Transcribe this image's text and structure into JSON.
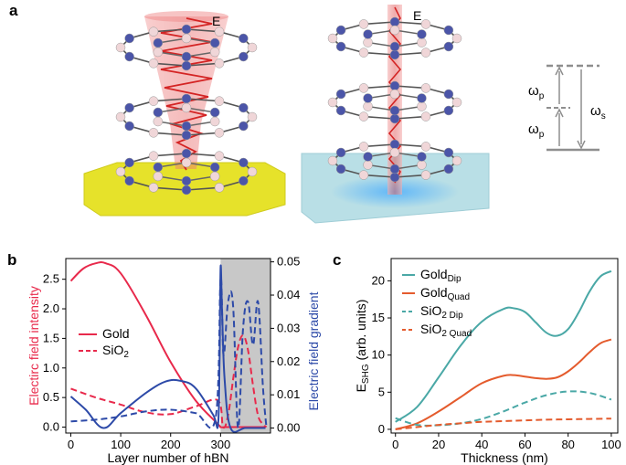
{
  "panels": {
    "a": {
      "label": "a",
      "field_left": "E",
      "field_right": "E",
      "energy": {
        "wp_upper": "ω",
        "wp_upper_sub": "p",
        "wp_lower": "ω",
        "wp_lower_sub": "p",
        "ws": "ω",
        "ws_sub": "s"
      }
    },
    "b": {
      "label": "b"
    },
    "c": {
      "label": "c"
    }
  },
  "colors": {
    "gold": "#e8294b",
    "sio2": "#2d4aa8",
    "gold_dip": "#4aa8a6",
    "gold_quad": "#e45b2d",
    "shade": "#c8c8c8"
  },
  "chart_data": [
    {
      "type": "line",
      "panel": "b",
      "xlabel": "Layer number of hBN",
      "ylabel_left": "Electirc field intensity",
      "ylabel_right": "Electric field gradient",
      "xlim": [
        -10,
        400
      ],
      "ylim_left": [
        -0.1,
        2.85
      ],
      "ylim_right": [
        -0.0015,
        0.051
      ],
      "x_ticks": [
        0,
        100,
        200,
        300
      ],
      "y_left_ticks": [
        "0.0",
        "0.5",
        "1.0",
        "1.5",
        "2.0",
        "2.5"
      ],
      "y_right_ticks": [
        "0.00",
        "0.01",
        "0.02",
        "0.03",
        "0.04",
        "0.05"
      ],
      "shaded_region": [
        300,
        400
      ],
      "legend": {
        "placement": "center-left",
        "entries": [
          {
            "label": "Gold",
            "style": "solid"
          },
          {
            "label": "SiO",
            "sub": "2",
            "style": "dashed"
          }
        ]
      },
      "series": [
        {
          "name": "Gold",
          "axis": "left",
          "style": "solid",
          "color": "#e8294b",
          "x": [
            0,
            25,
            50,
            70,
            100,
            150,
            200,
            250,
            295,
            300,
            310,
            320,
            330,
            340,
            350,
            360,
            370,
            380,
            390
          ],
          "y": [
            2.47,
            2.68,
            2.77,
            2.77,
            2.6,
            1.9,
            1.1,
            0.45,
            0.05,
            0.0,
            0.0,
            0.0,
            0.0,
            0.0,
            0.0,
            0.0,
            0.0,
            0.0,
            0.0
          ]
        },
        {
          "name": "SiO2",
          "axis": "left",
          "style": "dashed",
          "color": "#e8294b",
          "x": [
            0,
            50,
            100,
            150,
            200,
            250,
            295,
            305,
            315,
            325,
            335,
            345,
            355,
            365,
            375,
            385,
            392
          ],
          "y": [
            0.65,
            0.5,
            0.38,
            0.25,
            0.22,
            0.35,
            0.45,
            0.0,
            0.2,
            0.8,
            1.35,
            1.55,
            1.3,
            0.7,
            0.2,
            0.05,
            0.0
          ]
        },
        {
          "name": "Gold gradient",
          "axis": "right",
          "style": "solid",
          "color": "#2d4aa8",
          "x": [
            0,
            30,
            65,
            100,
            150,
            190,
            220,
            250,
            285,
            295,
            298,
            300,
            303,
            308,
            320,
            350,
            390
          ],
          "y": [
            0.0095,
            0.0055,
            0.0,
            0.0045,
            0.0105,
            0.014,
            0.0142,
            0.012,
            0.004,
            0.001,
            0.02,
            0.0485,
            0.035,
            0.015,
            0.0,
            0.0,
            0.0
          ]
        },
        {
          "name": "SiO2 gradient",
          "axis": "right",
          "style": "dashed",
          "color": "#2d4aa8",
          "x": [
            0,
            50,
            100,
            150,
            200,
            250,
            290,
            300,
            306,
            315,
            325,
            335,
            345,
            355,
            365,
            375,
            385,
            392
          ],
          "y": [
            0.002,
            0.0025,
            0.0035,
            0.005,
            0.0055,
            0.0045,
            0.003,
            0.045,
            0.022,
            0.038,
            0.037,
            0.0,
            0.03,
            0.038,
            0.025,
            0.038,
            0.012,
            0.0
          ]
        }
      ]
    },
    {
      "type": "line",
      "panel": "c",
      "xlabel": "Thickness (nm)",
      "ylabel": "E",
      "ylabel_sub": "SHG",
      "ylabel_rest": " (arb. units)",
      "xlim": [
        -2,
        103
      ],
      "ylim": [
        -0.5,
        23
      ],
      "x_ticks": [
        0,
        20,
        40,
        60,
        80,
        100
      ],
      "y_ticks": [
        0,
        5,
        10,
        15,
        20
      ],
      "legend": {
        "placement": "top-left",
        "entries": [
          {
            "label": "Gold",
            "sub": "Dip",
            "style": "solid",
            "color": "#4aa8a6"
          },
          {
            "label": "Gold",
            "sub": "Quad",
            "style": "solid",
            "color": "#e45b2d"
          },
          {
            "label": "SiO",
            "sub": "2 Dip",
            "style": "dashed",
            "color": "#4aa8a6"
          },
          {
            "label": "SiO",
            "sub": "2 Quad",
            "style": "dashed",
            "color": "#e45b2d"
          }
        ]
      },
      "series": [
        {
          "name": "Gold Dip",
          "style": "solid",
          "color": "#4aa8a6",
          "x": [
            0,
            10,
            20,
            30,
            40,
            50,
            55,
            60,
            65,
            70,
            75,
            80,
            85,
            90,
            95,
            100
          ],
          "y": [
            1.0,
            3.0,
            7.0,
            11.2,
            14.5,
            16.2,
            16.3,
            15.8,
            14.4,
            13.0,
            12.6,
            13.5,
            15.8,
            18.6,
            20.6,
            21.3
          ]
        },
        {
          "name": "Gold Quad",
          "style": "solid",
          "color": "#e45b2d",
          "x": [
            0,
            10,
            20,
            30,
            40,
            50,
            55,
            60,
            65,
            70,
            75,
            80,
            85,
            90,
            95,
            100
          ],
          "y": [
            0.0,
            0.8,
            2.4,
            4.3,
            6.2,
            7.2,
            7.3,
            7.1,
            6.9,
            6.8,
            7.0,
            7.8,
            9.0,
            10.4,
            11.6,
            12.1
          ]
        },
        {
          "name": "SiO2 Dip",
          "style": "dashed",
          "color": "#4aa8a6",
          "x": [
            0,
            10,
            20,
            30,
            40,
            50,
            60,
            70,
            80,
            90,
            100
          ],
          "y": [
            1.5,
            0.6,
            0.55,
            0.8,
            1.4,
            2.4,
            3.6,
            4.6,
            5.1,
            4.9,
            4.0
          ]
        },
        {
          "name": "SiO2 Quad",
          "style": "dashed",
          "color": "#e45b2d",
          "x": [
            0,
            10,
            20,
            30,
            40,
            50,
            60,
            70,
            80,
            90,
            100
          ],
          "y": [
            0.0,
            0.3,
            0.6,
            0.8,
            1.0,
            1.1,
            1.2,
            1.3,
            1.35,
            1.4,
            1.45
          ]
        }
      ]
    }
  ]
}
